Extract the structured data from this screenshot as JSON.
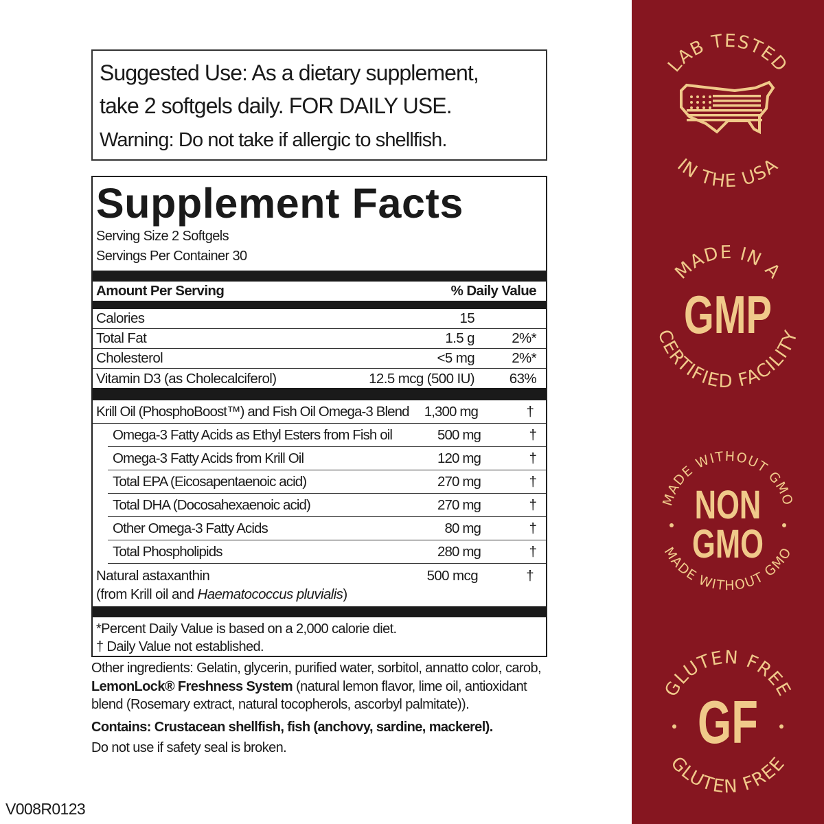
{
  "suggested_use": {
    "line1": "Suggested Use:  As a dietary supplement,",
    "line2": "take 2 softgels daily. FOR DAILY USE.",
    "warning": "Warning: Do not take if allergic to shellfish."
  },
  "facts": {
    "title": "Supplement Facts",
    "serving_size": "Serving Size 2 Softgels",
    "servings_per_container": "Servings Per Container 30",
    "header": {
      "amount": "Amount Per Serving",
      "dv": "% Daily Value"
    },
    "nutrients": [
      {
        "name": "Calories",
        "amount": "15",
        "dv": ""
      },
      {
        "name": "Total Fat",
        "amount": "1.5 g",
        "dv": "2%*"
      },
      {
        "name": "Cholesterol",
        "amount": "<5 mg",
        "dv": "2%*"
      },
      {
        "name": "Vitamin D3 (as Cholecalciferol)",
        "amount": "12.5 mcg (500 IU)",
        "dv": "63%"
      }
    ],
    "blend": [
      {
        "name": "Krill Oil (PhosphoBoost™) and Fish Oil Omega-3 Blend",
        "amount": "1,300 mg",
        "dv": "†",
        "sub": false
      },
      {
        "name": "Omega-3 Fatty Acids as Ethyl Esters from Fish oil",
        "amount": "500 mg",
        "dv": "†",
        "sub": true
      },
      {
        "name": "Omega-3 Fatty Acids from Krill Oil",
        "amount": "120 mg",
        "dv": "†",
        "sub": true
      },
      {
        "name": "Total  EPA (Eicosapentaenoic acid)",
        "amount": "270 mg",
        "dv": "†",
        "sub": true
      },
      {
        "name": "Total DHA (Docosahexaenoic acid)",
        "amount": "270 mg",
        "dv": "†",
        "sub": true
      },
      {
        "name": "Other Omega-3 Fatty Acids",
        "amount": "80 mg",
        "dv": "†",
        "sub": true
      },
      {
        "name": "Total Phospholipids",
        "amount": "280 mg",
        "dv": "†",
        "sub": true
      }
    ],
    "astaxanthin": {
      "name": "Natural astaxanthin",
      "source_prefix": "(from Krill oil and ",
      "source_species": "Haematococcus pluvialis",
      "source_suffix": ")",
      "amount": "500 mcg",
      "dv": "†"
    },
    "footnote1": "*Percent Daily Value is based on a 2,000 calorie diet.",
    "footnote2": "† Daily Value not established."
  },
  "other": {
    "prefix": "Other ingredients: Gelatin, glycerin, purified water, sorbitol, annatto color, carob, ",
    "brand": "LemonLock® Freshness System",
    "suffix": " (natural lemon flavor, lime oil, antioxidant blend (Rosemary extract, natural tocopherols, ascorbyl palmitate)).",
    "contains": "Contains: Crustacean shellfish, fish (anchovy, sardine, mackerel).",
    "seal": "Do not use if safety seal is broken."
  },
  "code": "V008R0123",
  "badges": [
    {
      "top": "LAB TESTED",
      "bottom": "IN THE USA",
      "center": "",
      "icon": "usa-flag-map-icon"
    },
    {
      "top": "MADE IN A",
      "bottom": "CERTIFIED FACILITY",
      "center": "GMP"
    },
    {
      "top": "MADE WITHOUT GMO",
      "bottom": "MADE WITHOUT GMO",
      "center": "NON",
      "center2": "GMO"
    },
    {
      "top": "GLUTEN FREE",
      "bottom": "GLUTEN FREE",
      "center": "GF"
    }
  ],
  "colors": {
    "panel": "#861620",
    "gold": "#f0c98a",
    "text": "#1a1a1a"
  }
}
